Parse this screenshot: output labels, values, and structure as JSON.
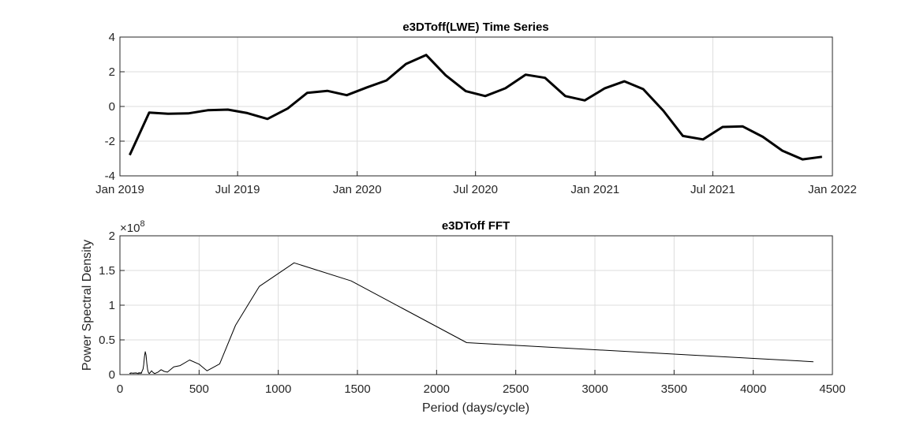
{
  "chart_data": [
    {
      "type": "line",
      "title": "e3DToff(LWE) Time Series",
      "xlabel": "",
      "ylabel": "",
      "ylim": [
        -4,
        4
      ],
      "yticks": [
        "4",
        "2",
        "0",
        "-2",
        "-4"
      ],
      "xticks": [
        "Jan 2019",
        "Jul 2019",
        "Jan 2020",
        "Jul 2020",
        "Jan 2021",
        "Jul 2021",
        "Jan 2022"
      ],
      "grid": true,
      "series": [
        {
          "color": "#000000",
          "x": [
            "2019-01-16",
            "2019-02-15",
            "2019-03-16",
            "2019-04-16",
            "2019-05-16",
            "2019-06-16",
            "2019-07-16",
            "2019-08-16",
            "2019-09-16",
            "2019-10-16",
            "2019-11-16",
            "2019-12-16",
            "2020-01-16",
            "2020-02-15",
            "2020-03-16",
            "2020-04-16",
            "2020-05-16",
            "2020-06-16",
            "2020-07-16",
            "2020-08-16",
            "2020-09-16",
            "2020-10-16",
            "2020-11-16",
            "2020-12-16",
            "2021-01-16",
            "2021-02-15",
            "2021-03-16",
            "2021-04-16",
            "2021-05-16",
            "2021-06-16",
            "2021-07-16",
            "2021-08-16",
            "2021-09-16",
            "2021-10-16",
            "2021-11-16",
            "2021-12-16"
          ],
          "values": [
            -2.8,
            -0.35,
            -0.42,
            -0.4,
            -0.22,
            -0.18,
            -0.38,
            -0.72,
            -0.12,
            0.78,
            0.9,
            0.65,
            1.1,
            1.5,
            2.45,
            2.97,
            1.8,
            0.88,
            0.6,
            1.05,
            1.83,
            1.65,
            0.6,
            0.35,
            1.05,
            1.45,
            1.0,
            -0.25,
            -1.7,
            -1.9,
            -1.18,
            -1.15,
            -1.75,
            -2.55,
            -3.05,
            -2.9
          ]
        }
      ]
    },
    {
      "type": "line",
      "title": "e3DToff FFT",
      "xlabel": "Period (days/cycle)",
      "ylabel": "Power Spectral Density",
      "y_exponent": "×10",
      "y_exponent_power": "8",
      "xlim": [
        0,
        4500
      ],
      "ylim": [
        0,
        200000000
      ],
      "xticks": [
        "0",
        "500",
        "1000",
        "1500",
        "2000",
        "2500",
        "3000",
        "3500",
        "4000",
        "4500"
      ],
      "yticks": [
        "0",
        "0.5",
        "1",
        "1.5",
        "2"
      ],
      "grid": true,
      "series": [
        {
          "color": "#000000",
          "x": [
            60,
            66,
            70,
            75,
            80,
            85,
            90,
            95,
            100,
            105,
            110,
            115,
            120,
            125,
            130,
            135,
            140,
            146,
            150,
            155,
            160,
            165,
            170,
            175,
            180,
            185,
            190,
            200,
            210,
            220,
            240,
            260,
            280,
            300,
            340,
            380,
            440,
            500,
            550,
            630,
            730,
            880,
            1100,
            1460,
            2190,
            4380
          ],
          "values": [
            2000000,
            1500000,
            2600000,
            1800000,
            2400000,
            1600000,
            2500000,
            1800000,
            2700000,
            1700000,
            2200000,
            1300000,
            2900000,
            1500000,
            2800000,
            1700000,
            5000000,
            8000000,
            14000000,
            26000000,
            33000000,
            28000000,
            16000000,
            7000000,
            3000000,
            1500000,
            2500000,
            5500000,
            3000000,
            1500000,
            3500000,
            7000000,
            4500000,
            3500000,
            11000000,
            13000000,
            21000000,
            15000000,
            5500000,
            15500000,
            71000000,
            127000000,
            161000000,
            135000000,
            46000000,
            18500000
          ]
        }
      ]
    }
  ]
}
